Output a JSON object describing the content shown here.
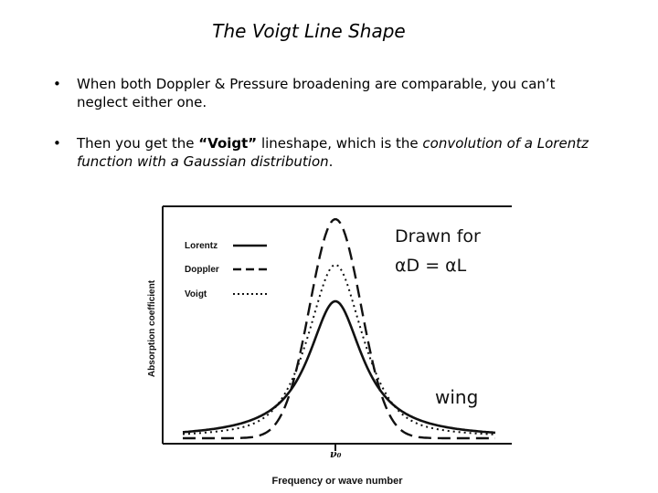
{
  "slide": {
    "title": "The Voigt Line Shape",
    "bullets": [
      {
        "marker": "•",
        "parts": [
          {
            "text": "When both Doppler & Pressure broadening are comparable, you can’t neglect either one.",
            "style": "normal"
          }
        ]
      },
      {
        "marker": "•",
        "parts": [
          {
            "text": "Then you get the ",
            "style": "normal"
          },
          {
            "text": "“Voigt”",
            "style": "bold"
          },
          {
            "text": " lineshape, which is the ",
            "style": "normal"
          },
          {
            "text": "convolution of a Lorentz function with a Gaussian distribution",
            "style": "italic"
          },
          {
            "text": ".",
            "style": "normal"
          }
        ]
      }
    ]
  },
  "figure": {
    "ylabel": "Absorption coefficient",
    "xlabel": "Frequency or wave number",
    "center_tick_label": "ν₀",
    "legend": [
      {
        "label": "Lorentz",
        "style": "solid"
      },
      {
        "label": "Doppler",
        "style": "dashed"
      },
      {
        "label": "Voigt",
        "style": "dotted"
      }
    ],
    "annotations": {
      "drawn_for_line1": "Drawn for",
      "drawn_for_line2": "αD = αL",
      "wing": "wing"
    },
    "colors": {
      "ink": "#111111"
    }
  }
}
